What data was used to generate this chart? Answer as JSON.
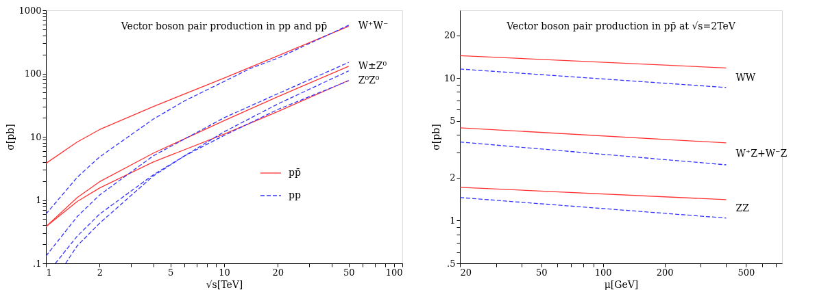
{
  "chart_data": [
    {
      "type": "line",
      "title": "Vector boson pair production in pp and pp̄",
      "xlabel": "√s[TeV]",
      "ylabel": "σ[pb]",
      "log": "xy",
      "legend": "right",
      "xlim": [
        1,
        100
      ],
      "ylim": [
        0.1,
        1000
      ],
      "xticks": [
        1,
        2,
        {
          "value": 3,
          "label": null
        },
        {
          "value": 4,
          "label": null
        },
        5,
        {
          "value": 6,
          "label": null
        },
        {
          "value": 7,
          "label": null
        },
        {
          "value": 8,
          "label": null
        },
        {
          "value": 9,
          "label": null
        },
        10,
        20,
        {
          "value": 30,
          "label": null
        },
        {
          "value": 40,
          "label": null
        },
        50,
        {
          "value": 60,
          "label": null
        },
        {
          "value": 70,
          "label": null
        },
        {
          "value": 80,
          "label": null
        },
        {
          "value": 90,
          "label": null
        },
        100
      ],
      "yticks": [
        {
          "value": 0.1,
          "label": ".1"
        },
        {
          "value": 0.2,
          "label": null
        },
        {
          "value": 0.3,
          "label": null
        },
        {
          "value": 0.4,
          "label": null
        },
        {
          "value": 0.5,
          "label": null
        },
        {
          "value": 0.6,
          "label": null
        },
        {
          "value": 0.7,
          "label": null
        },
        {
          "value": 0.8,
          "label": null
        },
        {
          "value": 0.9,
          "label": null
        },
        1,
        {
          "value": 2,
          "label": null
        },
        {
          "value": 3,
          "label": null
        },
        {
          "value": 4,
          "label": null
        },
        {
          "value": 5,
          "label": null
        },
        {
          "value": 6,
          "label": null
        },
        {
          "value": 7,
          "label": null
        },
        {
          "value": 8,
          "label": null
        },
        {
          "value": 9,
          "label": null
        },
        10,
        {
          "value": 20,
          "label": null
        },
        {
          "value": 30,
          "label": null
        },
        {
          "value": 40,
          "label": null
        },
        {
          "value": 50,
          "label": null
        },
        {
          "value": 60,
          "label": null
        },
        {
          "value": 70,
          "label": null
        },
        {
          "value": 80,
          "label": null
        },
        {
          "value": 90,
          "label": null
        },
        100,
        {
          "value": 200,
          "label": null
        },
        {
          "value": 300,
          "label": null
        },
        {
          "value": 400,
          "label": null
        },
        {
          "value": 500,
          "label": null
        },
        {
          "value": 600,
          "label": null
        },
        {
          "value": 700,
          "label": null
        },
        {
          "value": 800,
          "label": null
        },
        {
          "value": 900,
          "label": null
        },
        1000
      ],
      "series": [
        {
          "name": "pp̄",
          "color": "#ff3333",
          "line_style": "solid",
          "x": [
            1,
            1.5,
            2,
            4,
            10,
            20,
            50
          ],
          "values": [
            3.8,
            8.3,
            13,
            30,
            85,
            190,
            560
          ]
        },
        {
          "color": "#ff3333",
          "line_style": "solid",
          "x": [
            1,
            1.5,
            2,
            4,
            10,
            20,
            50
          ],
          "values": [
            0.38,
            1.1,
            1.95,
            5.5,
            18,
            43,
            130
          ]
        },
        {
          "color": "#ff3333",
          "line_style": "solid",
          "x": [
            1,
            1.5,
            2,
            4,
            10,
            20,
            50
          ],
          "values": [
            0.38,
            0.95,
            1.55,
            4,
            11,
            25,
            78
          ]
        },
        {
          "name": "pp",
          "color": "#3333ff",
          "line_style": "dashed",
          "x": [
            1,
            1.5,
            2,
            4,
            6,
            10,
            14,
            20,
            50
          ],
          "values": [
            0.6,
            2.3,
            4.8,
            19,
            37,
            75,
            120,
            175,
            580
          ]
        },
        {
          "color": "#3333ff",
          "line_style": "dashed",
          "x": [
            1,
            1.5,
            2,
            4,
            10,
            20,
            50
          ],
          "values": [
            0.13,
            0.55,
            1.2,
            5,
            20,
            48,
            150
          ]
        },
        {
          "color": "#3333ff",
          "line_style": "dashed",
          "x": [
            1.13,
            1.5,
            2,
            4,
            6,
            10,
            20,
            50
          ],
          "values": [
            0.1,
            0.27,
            0.6,
            2.5,
            5,
            12,
            33,
            110
          ]
        },
        {
          "color": "#3333ff",
          "line_style": "dashed",
          "x": [
            1.29,
            1.5,
            2,
            4,
            6,
            10,
            20,
            50
          ],
          "values": [
            0.1,
            0.19,
            0.43,
            2.4,
            5,
            10.5,
            27,
            77
          ]
        }
      ],
      "annotations": [
        "W⁺W⁻",
        "W±Z⁰",
        "Z⁰Z⁰"
      ]
    },
    {
      "type": "line",
      "title": "Vector boson pair production in pp̄ at √s=2TeV",
      "xlabel": "μ[GeV]",
      "ylabel": "σ[pb]",
      "log": "xy",
      "xlim": [
        20,
        750
      ],
      "ylim": [
        0.5,
        30
      ],
      "xticks": [
        20,
        {
          "value": 30,
          "label": null
        },
        {
          "value": 40,
          "label": null
        },
        50,
        {
          "value": 60,
          "label": null
        },
        {
          "value": 70,
          "label": null
        },
        {
          "value": 80,
          "label": null
        },
        {
          "value": 90,
          "label": null
        },
        100,
        200,
        {
          "value": 300,
          "label": null
        },
        {
          "value": 400,
          "label": null
        },
        500,
        {
          "value": 600,
          "label": null
        },
        {
          "value": 700,
          "label": null
        }
      ],
      "yticks": [
        {
          "value": 0.5,
          "label": ".5"
        },
        {
          "value": 0.6,
          "label": null
        },
        {
          "value": 0.7,
          "label": null
        },
        {
          "value": 0.8,
          "label": null
        },
        {
          "value": 0.9,
          "label": null
        },
        1,
        2,
        {
          "value": 3,
          "label": null
        },
        {
          "value": 4,
          "label": null
        },
        5,
        {
          "value": 6,
          "label": null
        },
        {
          "value": 7,
          "label": null
        },
        {
          "value": 8,
          "label": null
        },
        {
          "value": 9,
          "label": null
        },
        10,
        20
      ],
      "series": [
        {
          "color": "#ff3333",
          "line_style": "solid",
          "x": [
            20,
            400
          ],
          "values": [
            14.4,
            11.8
          ]
        },
        {
          "color": "#3333ff",
          "line_style": "dashed",
          "x": [
            20,
            400
          ],
          "values": [
            11.6,
            8.6
          ]
        },
        {
          "color": "#ff3333",
          "line_style": "solid",
          "x": [
            20,
            400
          ],
          "values": [
            4.48,
            3.51
          ]
        },
        {
          "color": "#3333ff",
          "line_style": "dashed",
          "x": [
            20,
            400
          ],
          "values": [
            3.56,
            2.46
          ]
        },
        {
          "color": "#ff3333",
          "line_style": "solid",
          "x": [
            20,
            400
          ],
          "values": [
            1.71,
            1.4
          ]
        },
        {
          "color": "#3333ff",
          "line_style": "dashed",
          "x": [
            20,
            400
          ],
          "values": [
            1.45,
            1.04
          ]
        }
      ],
      "annotations": [
        "WW",
        "W⁺Z+W⁻Z",
        "ZZ"
      ]
    }
  ]
}
